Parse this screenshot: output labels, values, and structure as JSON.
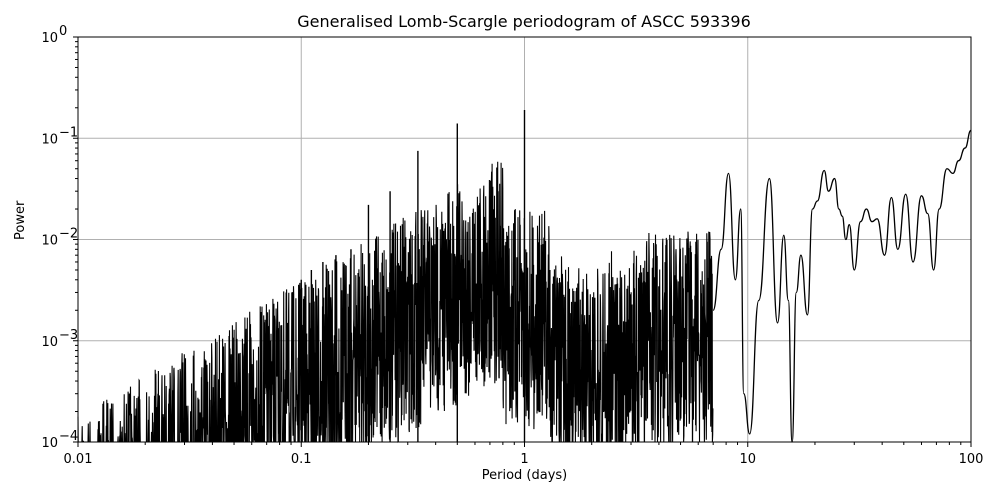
{
  "chart_data": {
    "type": "line",
    "title": "Generalised Lomb-Scargle periodogram of ASCC 593396",
    "xlabel": "Period (days)",
    "ylabel": "Power",
    "xscale": "log",
    "yscale": "log",
    "xlim": [
      0.01,
      100
    ],
    "ylim": [
      0.0001,
      1
    ],
    "grid": true,
    "legend": null,
    "xticks": [
      "0.01",
      "0.1",
      "1",
      "10",
      "100"
    ],
    "yticks": [
      "10^-4",
      "10^-3",
      "10^-2",
      "10^-1",
      "10^0"
    ],
    "notable_peaks": [
      {
        "period": 0.2,
        "power": 0.022
      },
      {
        "period": 0.25,
        "power": 0.03
      },
      {
        "period": 0.333,
        "power": 0.075
      },
      {
        "period": 0.5,
        "power": 0.14
      },
      {
        "period": 1.0,
        "power": 0.19
      },
      {
        "period": 8.2,
        "power": 0.045
      },
      {
        "period": 12.5,
        "power": 0.04
      },
      {
        "period": 22,
        "power": 0.048
      },
      {
        "period": 24.5,
        "power": 0.04
      },
      {
        "period": 100,
        "power": 0.12
      }
    ],
    "envelope": {
      "period": [
        0.01,
        0.02,
        0.05,
        0.1,
        0.2,
        0.3,
        0.5,
        0.7,
        1.0,
        2.0,
        4.0,
        7.0,
        8.2,
        10,
        12.5,
        16,
        20,
        22,
        30,
        40,
        50,
        60,
        75,
        85,
        100
      ],
      "power": [
        0.0002,
        0.0003,
        0.0008,
        0.002,
        0.004,
        0.006,
        0.012,
        0.02,
        0.19,
        0.006,
        0.015,
        0.01,
        0.045,
        0.0001,
        0.04,
        0.0001,
        0.024,
        0.048,
        0.01,
        0.028,
        0.005,
        0.026,
        0.05,
        0.07,
        0.12
      ]
    }
  },
  "axes": {
    "title": "Generalised Lomb-Scargle periodogram of ASCC 593396",
    "xlabel": "Period (days)",
    "ylabel": "Power"
  }
}
